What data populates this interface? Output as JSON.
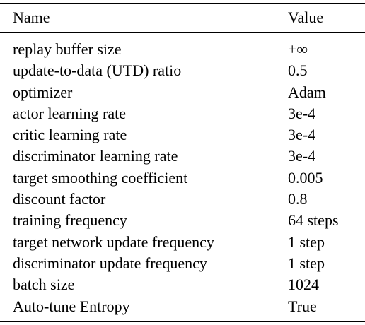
{
  "table": {
    "headers": {
      "name": "Name",
      "value": "Value"
    },
    "rows": [
      {
        "name": "replay buffer size",
        "value": "+∞"
      },
      {
        "name": "update-to-data (UTD) ratio",
        "value": "0.5"
      },
      {
        "name": "optimizer",
        "value": "Adam"
      },
      {
        "name": "actor learning rate",
        "value": "3e-4"
      },
      {
        "name": "critic learning rate",
        "value": "3e-4"
      },
      {
        "name": "discriminator learning rate",
        "value": "3e-4"
      },
      {
        "name": "target smoothing coefficient",
        "value": "0.005"
      },
      {
        "name": "discount factor",
        "value": "0.8"
      },
      {
        "name": "training frequency",
        "value": "64 steps"
      },
      {
        "name": "target network update frequency",
        "value": "1 step"
      },
      {
        "name": "discriminator update frequency",
        "value": "1 step"
      },
      {
        "name": "batch size",
        "value": "1024"
      },
      {
        "name": "Auto-tune Entropy",
        "value": "True"
      }
    ]
  }
}
